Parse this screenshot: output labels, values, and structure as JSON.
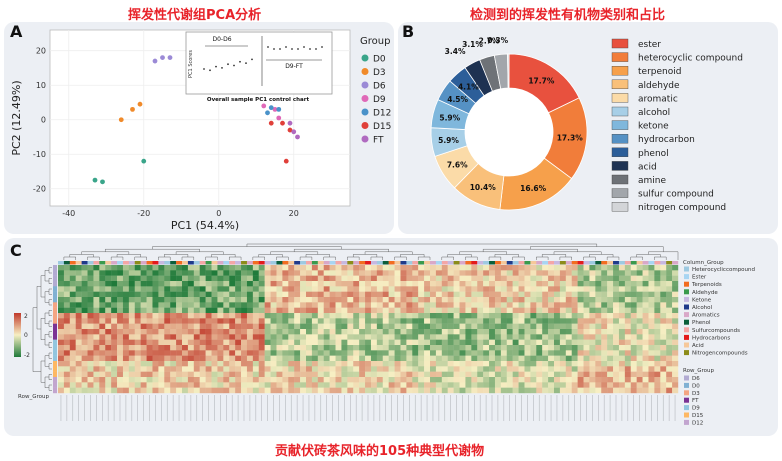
{
  "figure": {
    "title_a": "挥发性代谢组PCA分析",
    "title_b": "检测到的挥发性有机物类别和占比",
    "title_c": "贡献伏砖茶风味的105种典型代谢物",
    "panel_letters": [
      "A",
      "B",
      "C"
    ]
  },
  "chart_data": [
    {
      "type": "scatter",
      "xlabel": "PC1 (54.4%)",
      "ylabel": "PC2 (12.49%)",
      "xlim": [
        -45,
        35
      ],
      "ylim": [
        -25,
        26
      ],
      "xticks": [
        -40,
        -20,
        0,
        20
      ],
      "yticks": [
        20,
        10,
        0,
        -10,
        -20
      ],
      "legend_title": "Group",
      "legend_placement": "right",
      "series": [
        {
          "name": "D0",
          "color": "#3aa58a",
          "points": [
            [
              -33,
              -17.5
            ],
            [
              -31,
              -18
            ],
            [
              -20,
              -12
            ]
          ]
        },
        {
          "name": "D3",
          "color": "#f08a2a",
          "points": [
            [
              -26,
              0
            ],
            [
              -23,
              3
            ],
            [
              -21,
              4.5
            ]
          ]
        },
        {
          "name": "D6",
          "color": "#9b8ad6",
          "points": [
            [
              -17,
              17
            ],
            [
              -15,
              18
            ],
            [
              -13,
              18
            ]
          ]
        },
        {
          "name": "D9",
          "color": "#e069b8",
          "points": [
            [
              12,
              4
            ],
            [
              15,
              3
            ],
            [
              16,
              0.5
            ]
          ]
        },
        {
          "name": "D12",
          "color": "#4a92c9",
          "points": [
            [
              13,
              2
            ],
            [
              14,
              3.5
            ],
            [
              16,
              3
            ]
          ]
        },
        {
          "name": "D15",
          "color": "#e0403a",
          "points": [
            [
              14,
              -1
            ],
            [
              17,
              -1
            ],
            [
              19,
              -3
            ],
            [
              18,
              -12
            ]
          ]
        },
        {
          "name": "FT",
          "color": "#b06ac0",
          "points": [
            [
              19,
              -1
            ],
            [
              20,
              -3.5
            ],
            [
              21,
              -5
            ]
          ]
        }
      ],
      "inset": {
        "title": "Overall sample PC1 control chart",
        "ylabel": "PC1 Scores",
        "label_left": "D0-D6",
        "label_right": "D9-FT"
      }
    },
    {
      "type": "pie",
      "categories": [
        "ester",
        "heterocyclic compound",
        "terpenoid",
        "aldehyde",
        "aromatic",
        "alcohol",
        "ketone",
        "hydrocarbon",
        "phenol",
        "acid",
        "amine",
        "sulfur compound",
        "nitrogen compound"
      ],
      "values": [
        17.7,
        17.3,
        16.6,
        10.4,
        7.6,
        5.9,
        5.9,
        4.5,
        4.1,
        3.4,
        3.1,
        2.7,
        0.3
      ],
      "labels": [
        "17.7%",
        "17.3%",
        "16.6%",
        "10.4%",
        "7.6%",
        "5.9%",
        "5.9%",
        "4.5%",
        "4.1%",
        "3.4%",
        "3.1%",
        "2.7%",
        "0.3%"
      ],
      "colors": [
        "#e8513e",
        "#f17d3a",
        "#f6a04b",
        "#f9c07a",
        "#fbdba8",
        "#a7cfe7",
        "#7fb7dc",
        "#5591c4",
        "#2c5e99",
        "#1e3252",
        "#6e7277",
        "#a2a6ab",
        "#d3d5d8"
      ],
      "legend_placement": "right"
    },
    {
      "type": "heatmap",
      "rows": 24,
      "cols": 105,
      "legend_ticks": [
        "2",
        "0",
        "-2"
      ],
      "row_group_label": "Row_Group",
      "column_group_title": "Column_Group",
      "column_groups": [
        {
          "name": "Heterocycliccompound",
          "color": "#9ecae1"
        },
        {
          "name": "Ester",
          "color": "#a8d5f2"
        },
        {
          "name": "Terpenoids",
          "color": "#f26d21"
        },
        {
          "name": "Aldehyde",
          "color": "#3a9a4c"
        },
        {
          "name": "Ketone",
          "color": "#c7b8e0"
        },
        {
          "name": "Alcohol",
          "color": "#1f3a8a"
        },
        {
          "name": "Aromatics",
          "color": "#d9a8c8"
        },
        {
          "name": "Phenol",
          "color": "#0b5e3a"
        },
        {
          "name": "Sulfurcompounds",
          "color": "#f4a6a6"
        },
        {
          "name": "Hydrocarbons",
          "color": "#e31a1c"
        },
        {
          "name": "Acid",
          "color": "#f6c89a"
        },
        {
          "name": "Nitrogencompounds",
          "color": "#8c8c1a"
        }
      ],
      "row_group_title": "Row_Group",
      "row_groups": [
        {
          "name": "D6",
          "color": "#b2abd2"
        },
        {
          "name": "D0",
          "color": "#80b1d3"
        },
        {
          "name": "D3",
          "color": "#f4a582"
        },
        {
          "name": "FT",
          "color": "#7b3294"
        },
        {
          "name": "D9",
          "color": "#92c5de"
        },
        {
          "name": "D15",
          "color": "#fdb863"
        },
        {
          "name": "D12",
          "color": "#c2a5cf"
        }
      ]
    }
  ]
}
